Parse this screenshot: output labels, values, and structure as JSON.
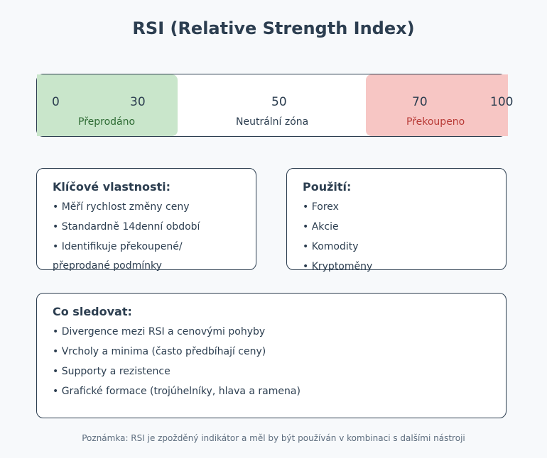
{
  "title": "RSI (Relative Strength Index)",
  "scale": {
    "ticks": [
      "0",
      "30",
      "50",
      "70",
      "100"
    ],
    "zones": {
      "oversold": "Přeprodáno",
      "neutral": "Neutrální zóna",
      "overbought": "Překoupeno"
    },
    "colors": {
      "oversold": "#c9e6cb",
      "overbought": "#f7c6c4"
    }
  },
  "features": {
    "heading": "Klíčové vlastnosti:",
    "items": [
      "• Měří rychlost změny ceny",
      "• Standardně 14denní období",
      "• Identifikuje překoupené/",
      "přeprodané podmínky"
    ]
  },
  "usage": {
    "heading": "Použití:",
    "items": [
      "• Forex",
      "• Akcie",
      "• Komodity",
      "• Kryptoměny"
    ]
  },
  "watch": {
    "heading": "Co sledovat:",
    "items": [
      "• Divergence mezi RSI a cenovými pohyby",
      "• Vrcholy a minima (často předbíhají ceny)",
      "• Supporty a rezistence",
      "• Grafické formace (trojúhelníky, hlava a ramena)"
    ]
  },
  "note": "Poznámka: RSI je zpožděný indikátor a měl by být používán v kombinaci s dalšími nástroji"
}
